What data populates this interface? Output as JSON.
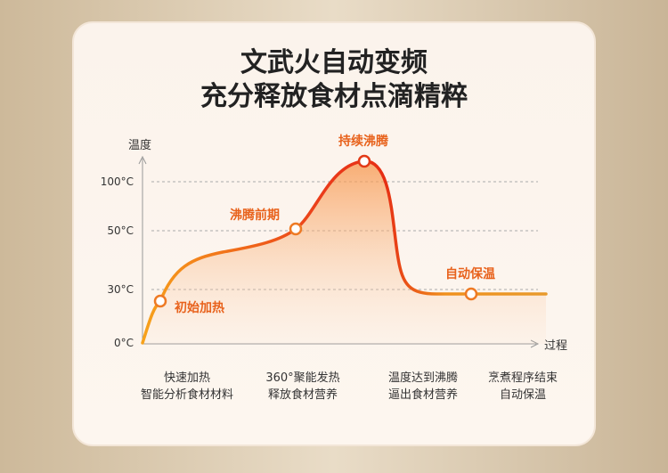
{
  "header": {
    "title_lines": [
      "文武火自动变频",
      "充分释放食材点滴精粹"
    ]
  },
  "axis": {
    "y_label": "温度",
    "x_label": "过程",
    "ticks": [
      "0°C",
      "30°C",
      "50°C",
      "100°C"
    ]
  },
  "stages": [
    "初始加热",
    "沸腾前期",
    "持续沸腾",
    "自动保温"
  ],
  "steps": [
    [
      "快速加热",
      "智能分析食材材料"
    ],
    [
      "360°聚能发热",
      "释放食材营养"
    ],
    [
      "温度达到沸腾",
      "逼出食材营养"
    ],
    [
      "烹煮程序结束",
      "自动保温"
    ]
  ]
}
